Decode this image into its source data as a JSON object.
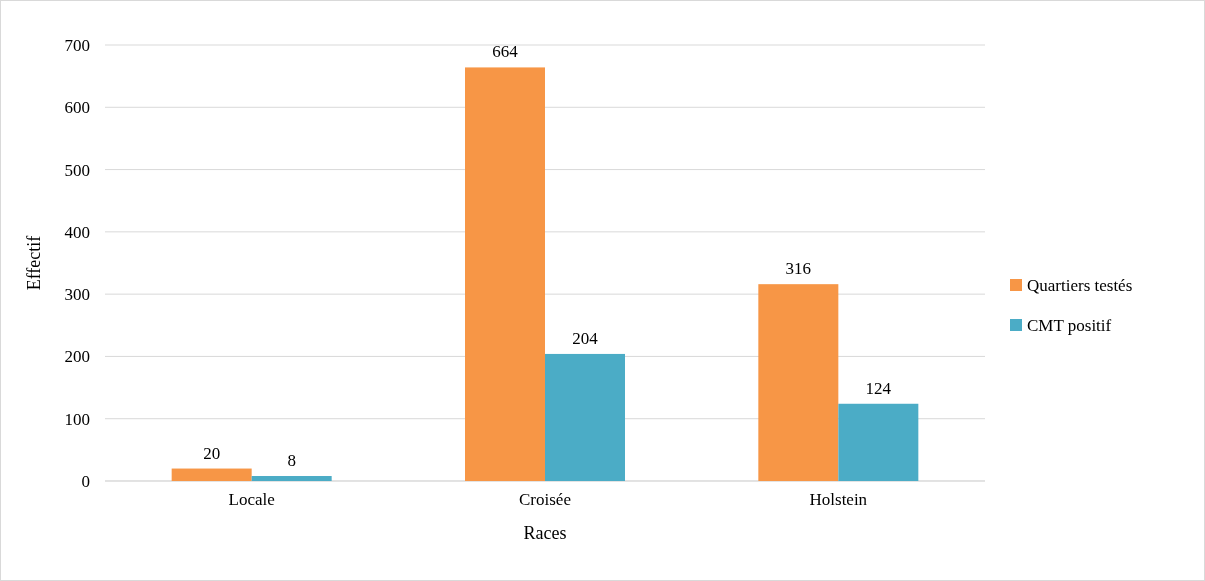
{
  "chart_data": {
    "type": "bar",
    "xlabel": "Races",
    "ylabel": "Effectif",
    "categories": [
      "Locale",
      "Croisée",
      "Holstein"
    ],
    "series": [
      {
        "name": "Quartiers testés",
        "color": "#f79646",
        "values": [
          20,
          664,
          316
        ]
      },
      {
        "name": "CMT positif",
        "color": "#4bacc6",
        "values": [
          8,
          204,
          124
        ]
      }
    ],
    "ylim": [
      0,
      700
    ],
    "yticks": [
      0,
      100,
      200,
      300,
      400,
      500,
      600,
      700
    ],
    "grid": "y",
    "legend": "right",
    "data_labels": true
  }
}
